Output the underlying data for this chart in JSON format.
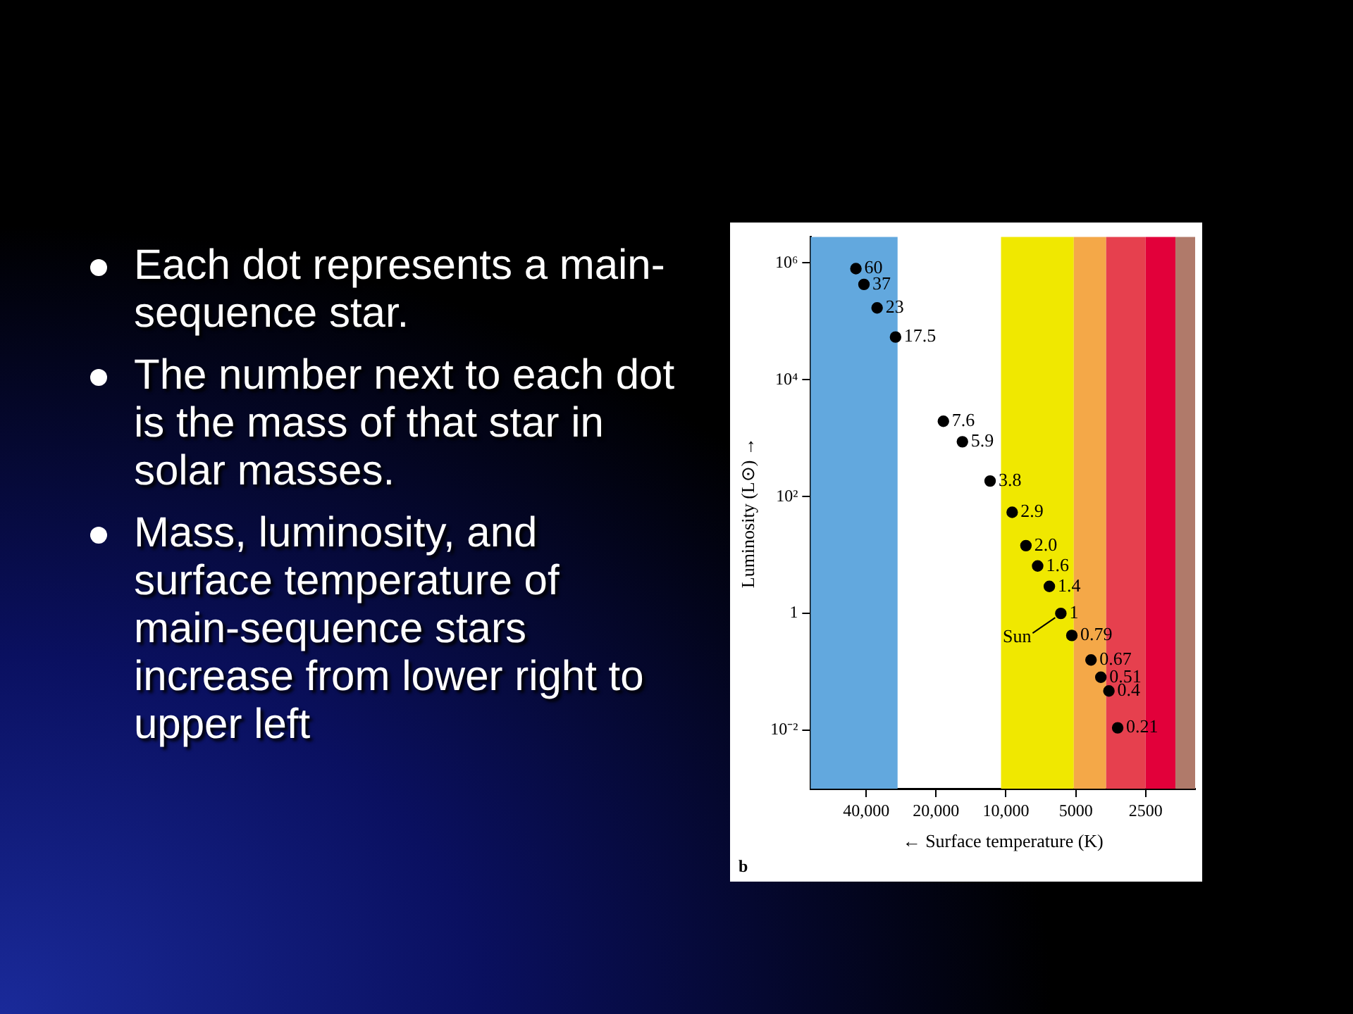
{
  "chart_data": {
    "type": "scatter",
    "xlabel": "← Surface temperature (K)",
    "ylabel": "Luminosity (L⊙) →",
    "x": [
      44300,
      40900,
      35900,
      29900,
      18600,
      15400,
      11700,
      9400,
      8200,
      7300,
      6500,
      5800,
      5200,
      4300,
      3900,
      3600,
      3300
    ],
    "series": [
      {
        "color": "#000000",
        "values": [
          800000,
          430000,
          170000,
          54000,
          1950,
          870,
          185,
          54,
          14.5,
          6.5,
          2.9,
          1,
          0.42,
          0.16,
          0.081,
          0.047,
          0.011
        ]
      }
    ],
    "marker": "circle",
    "log": "xy",
    "grid": false,
    "legend": false,
    "xlim": [
      69400,
      1530
    ],
    "ylim": [
      0.001,
      2800000
    ],
    "xticks": [
      {
        "value": 40000,
        "label": "40,000"
      },
      {
        "value": 20000,
        "label": "20,000"
      },
      {
        "value": 10000,
        "label": "10,000"
      },
      5000,
      2500
    ],
    "yticks": [
      {
        "value": 0.01,
        "label": "10⁻²"
      },
      1,
      {
        "value": 100,
        "label": "10²"
      },
      {
        "value": 10000,
        "label": "10⁴"
      },
      {
        "value": 1000000,
        "label": "10⁶"
      }
    ],
    "bands": [
      {
        "axis": "x",
        "from": 69400,
        "to": 29300,
        "color": "#62a8de"
      },
      {
        "axis": "x",
        "from": 10500,
        "to": 5100,
        "color": "#f0e800"
      },
      {
        "axis": "x",
        "from": 5100,
        "to": 3700,
        "color": "#f4a848"
      },
      {
        "axis": "x",
        "from": 3700,
        "to": 2500,
        "color": "#e6404e"
      },
      {
        "axis": "x",
        "from": 2500,
        "to": 1860,
        "color": "#e2003a"
      },
      {
        "axis": "x",
        "from": 1860,
        "to": 1530,
        "color": "#b07a6a"
      }
    ],
    "annotations": [
      "Each dot represents a main-sequence star.",
      "The number next to each dot is the mass of that star in solar masses.",
      "Mass, luminosity, and surface temperature of main-sequence stars increase from lower right to upper left",
      {
        "text": "60",
        "x": 44300,
        "y": 800000
      },
      {
        "text": "37",
        "x": 40900,
        "y": 430000
      },
      {
        "text": "23",
        "x": 35900,
        "y": 170000
      },
      {
        "text": "17.5",
        "x": 29900,
        "y": 54000
      },
      {
        "text": "7.6",
        "x": 18600,
        "y": 1950
      },
      {
        "text": "5.9",
        "x": 15400,
        "y": 870
      },
      {
        "text": "3.8",
        "x": 11700,
        "y": 185
      },
      {
        "text": "2.9",
        "x": 9400,
        "y": 54
      },
      {
        "text": "2.0",
        "x": 8200,
        "y": 14.5
      },
      {
        "text": "1.6",
        "x": 7300,
        "y": 6.5
      },
      {
        "text": "1.4",
        "x": 6500,
        "y": 2.9
      },
      {
        "text": "1",
        "x": 5800,
        "y": 1
      },
      {
        "text": "0.79",
        "x": 5200,
        "y": 0.42
      },
      {
        "text": "0.67",
        "x": 4300,
        "y": 0.16
      },
      {
        "text": "0.51",
        "x": 3900,
        "y": 0.081
      },
      {
        "text": "0.4",
        "x": 3600,
        "y": 0.047
      },
      {
        "text": "0.21",
        "x": 3300,
        "y": 0.011
      },
      {
        "text": "Sun",
        "x": 5800,
        "y": 1
      },
      "b"
    ]
  }
}
